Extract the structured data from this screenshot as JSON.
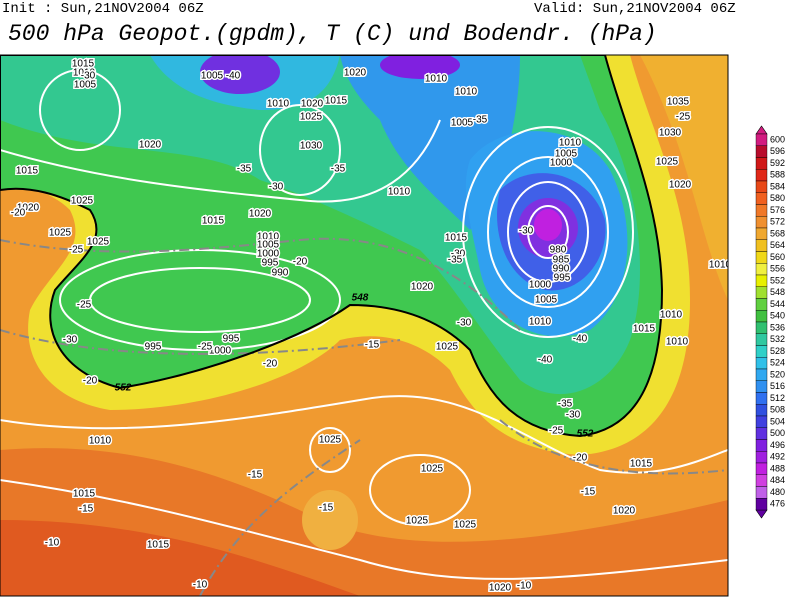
{
  "header": {
    "init": "Init : Sun,21NOV2004 06Z",
    "valid": "Valid: Sun,21NOV2004 06Z",
    "title": "500 hPa Geopot.(gpdm), T (C) und Bodendr. (hPa)"
  },
  "map": {
    "isobar_labels": [
      1015,
      1010,
      1005,
      1005,
      1010,
      1020,
      1015,
      1025,
      1030,
      1020,
      1010,
      1010,
      1005,
      1010,
      1005,
      1000,
      1035,
      1030,
      1025,
      1020,
      1020,
      1015,
      1025,
      1025,
      1025,
      1015,
      1020,
      1010,
      1005,
      1000,
      995,
      990,
      1010,
      1015,
      980,
      985,
      990,
      995,
      1000,
      1005,
      1010,
      1020,
      1025,
      995,
      1000,
      995,
      1015,
      1010,
      1010,
      1010,
      1025,
      1025,
      1015,
      1015,
      1020,
      1025,
      1025,
      1015,
      1020,
      1010,
      1020
    ],
    "temperature_labels": [
      -30,
      -40,
      -35,
      -35,
      -30,
      -35,
      -25,
      -20,
      -25,
      -30,
      -30,
      -20,
      -25,
      -30,
      -25,
      -20,
      -15,
      -30,
      -40,
      -40,
      -20,
      -35,
      -30,
      -25,
      -20,
      -15,
      -15,
      -15,
      -10,
      -15,
      -10,
      -10,
      -35
    ],
    "height_labels": [
      552,
      548,
      552
    ]
  },
  "colorbar": {
    "labels": [
      600,
      596,
      592,
      588,
      584,
      580,
      576,
      572,
      568,
      564,
      560,
      556,
      552,
      548,
      544,
      540,
      536,
      532,
      528,
      524,
      520,
      516,
      512,
      508,
      504,
      500,
      496,
      492,
      488,
      484,
      480,
      476
    ],
    "colors": [
      "#d21c80",
      "#b80c2c",
      "#d01818",
      "#e02818",
      "#e84818",
      "#f06020",
      "#f07828",
      "#f09030",
      "#f0a830",
      "#f0c020",
      "#f0d818",
      "#f0f040",
      "#e8f000",
      "#a0e030",
      "#60d040",
      "#40c040",
      "#30c070",
      "#30c8a0",
      "#30d0c8",
      "#30c0e8",
      "#30a8f0",
      "#3090f0",
      "#3070f0",
      "#3050e0",
      "#4040e0",
      "#6030e0",
      "#8020e0",
      "#a020e0",
      "#c020e0",
      "#d040e0",
      "#c060e8",
      "#6000a0"
    ]
  }
}
